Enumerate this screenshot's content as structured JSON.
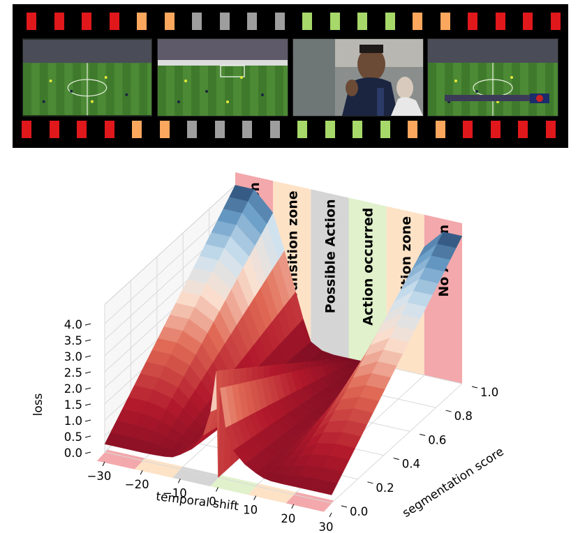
{
  "filmstrip": {
    "perforations_top": [
      "red",
      "red",
      "red",
      "red",
      "orange",
      "orange",
      "gray",
      "gray",
      "gray",
      "gray",
      "green",
      "green",
      "green",
      "green",
      "orange",
      "orange",
      "red",
      "red",
      "red",
      "red"
    ],
    "perforations_bottom": [
      "red",
      "red",
      "red",
      "red",
      "orange",
      "orange",
      "gray",
      "gray",
      "gray",
      "gray",
      "green",
      "green",
      "green",
      "green",
      "orange",
      "orange",
      "red",
      "red",
      "red",
      "red"
    ],
    "frames": [
      "wide-pitch-view",
      "goal-area-view",
      "player-closeup",
      "broadcast-wide-view-with-scoreboard"
    ]
  },
  "colors": {
    "red": "#e0181c",
    "orange": "#fba75e",
    "gray": "#9e9e9e",
    "green": "#a7d86a",
    "zone_red": "#f2a3a6",
    "zone_orange": "#fde0c3",
    "zone_gray": "#d3d3d3",
    "zone_green": "#def0c8"
  },
  "chart_data": {
    "type": "surface3d",
    "zones": [
      {
        "label": "No Action",
        "color": "zone_red",
        "range": [
          -30,
          -20
        ]
      },
      {
        "label": "Transition zone",
        "color": "zone_orange",
        "range": [
          -20,
          -10
        ]
      },
      {
        "label": "Possible Action",
        "color": "zone_gray",
        "range": [
          -10,
          0
        ]
      },
      {
        "label": "Action occurred",
        "color": "zone_green",
        "range": [
          0,
          10
        ]
      },
      {
        "label": "Transition zone",
        "color": "zone_orange",
        "range": [
          10,
          20
        ]
      },
      {
        "label": "No Action",
        "color": "zone_red",
        "range": [
          20,
          30
        ]
      }
    ],
    "xlabel": "temporal shift",
    "ylabel": "segmentation score",
    "zlabel": "loss",
    "xlim": [
      -30,
      30
    ],
    "ylim": [
      0,
      1
    ],
    "zlim": [
      0,
      4.6
    ],
    "xticks": [
      -30,
      -20,
      -10,
      0,
      10,
      20,
      30
    ],
    "xtick_labels": [
      "−30",
      "−20",
      "−10",
      "0",
      "10",
      "20",
      "30"
    ],
    "yticks": [
      0,
      0.2,
      0.4,
      0.6,
      0.8,
      1.0
    ],
    "ytick_labels": [
      "0.0",
      "0.2",
      "0.4",
      "0.6",
      "0.8",
      "1.0"
    ],
    "zticks": [
      0,
      0.5,
      1.0,
      1.5,
      2.0,
      2.5,
      3.0,
      3.5,
      4.0
    ],
    "ztick_labels": [
      "0.0",
      "0.5",
      "1.0",
      "1.5",
      "2.0",
      "2.5",
      "3.0",
      "3.5",
      "4.0"
    ],
    "surface_profile": {
      "t": [
        -30,
        -25,
        -20,
        -17,
        -14,
        -12,
        -10,
        -7,
        -4,
        -2,
        -0.5,
        0,
        0.5,
        2,
        4,
        7,
        10,
        12,
        14,
        17,
        20,
        25,
        30
      ],
      "loss_at_score_1": [
        4.6,
        4.6,
        4.0,
        2.9,
        1.7,
        0.9,
        0.25,
        0.05,
        0.0,
        0.0,
        0.0,
        0.0,
        0.0,
        0.0,
        0.0,
        0.05,
        0.25,
        0.9,
        1.7,
        2.9,
        4.0,
        4.6,
        4.6
      ],
      "loss_at_score_0": [
        0.25,
        0.25,
        0.25,
        0.26,
        0.28,
        0.32,
        0.45,
        0.7,
        1.2,
        2.0,
        3.3,
        0.0,
        2.8,
        1.6,
        0.95,
        0.6,
        0.4,
        0.3,
        0.26,
        0.25,
        0.25,
        0.25,
        0.25
      ]
    }
  }
}
